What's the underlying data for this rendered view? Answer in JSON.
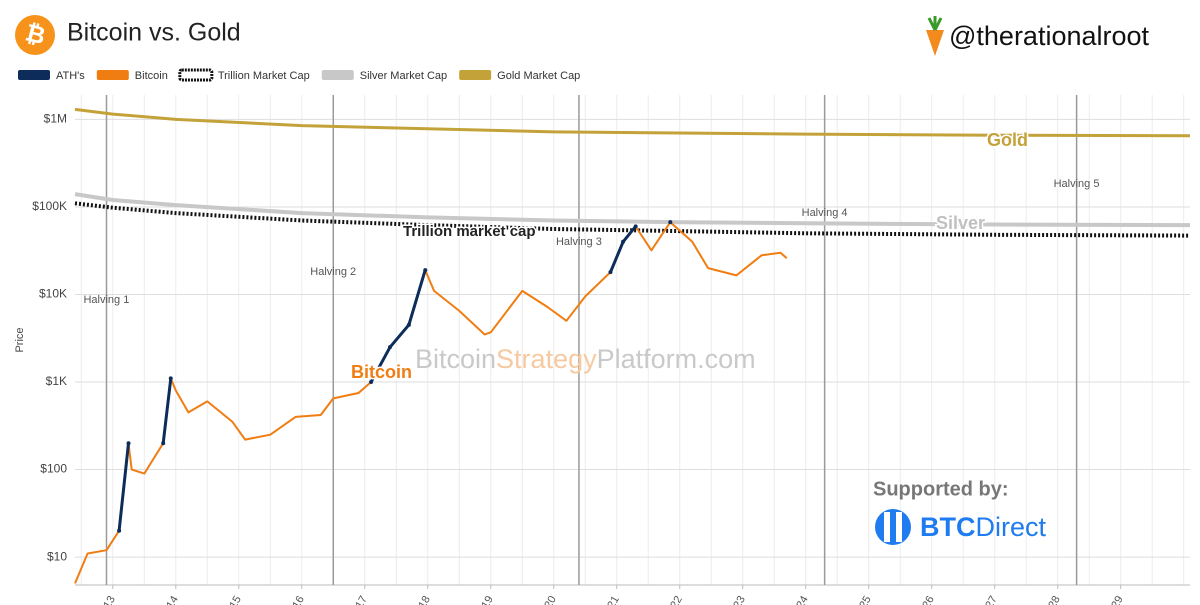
{
  "header": {
    "title": "Bitcoin vs. Gold",
    "handle": "@therationalroot"
  },
  "chart_data": {
    "type": "line",
    "log_y": true,
    "grid": true,
    "y_label": "Price",
    "xlim": [
      2012.4,
      2030.1
    ],
    "ylim": [
      4.8,
      1900000
    ],
    "yticks": [
      {
        "value": 10,
        "label": "$10"
      },
      {
        "value": 100,
        "label": "$100"
      },
      {
        "value": 1000,
        "label": "$1K"
      },
      {
        "value": 10000,
        "label": "$10K"
      },
      {
        "value": 100000,
        "label": "$100K"
      },
      {
        "value": 1000000,
        "label": "$1M"
      }
    ],
    "xticks": [
      {
        "value": 2013,
        "label": "13"
      },
      {
        "value": 2014,
        "label": "14"
      },
      {
        "value": 2015,
        "label": "15"
      },
      {
        "value": 2016,
        "label": "16"
      },
      {
        "value": 2017,
        "label": "17"
      },
      {
        "value": 2018,
        "label": "18"
      },
      {
        "value": 2019,
        "label": "19"
      },
      {
        "value": 2020,
        "label": "20"
      },
      {
        "value": 2021,
        "label": "21"
      },
      {
        "value": 2022,
        "label": "22"
      },
      {
        "value": 2023,
        "label": "23"
      },
      {
        "value": 2024,
        "label": "24"
      },
      {
        "value": 2025,
        "label": "25"
      },
      {
        "value": 2026,
        "label": "26"
      },
      {
        "value": 2027,
        "label": "27"
      },
      {
        "value": 2028,
        "label": "28"
      },
      {
        "value": 2029,
        "label": "29"
      }
    ],
    "series": [
      {
        "name": "ATH's",
        "color": "#0d2c5a",
        "x": [
          2012.4,
          2012.6,
          2012.9,
          2013.1,
          2013.25,
          2013.3,
          2013.5,
          2013.8,
          2013.92,
          2014.0,
          2014.2,
          2014.5,
          2014.9,
          2015.1,
          2015.5,
          2015.9,
          2016.3,
          2016.5,
          2016.9,
          2017.1,
          2017.4,
          2017.7,
          2017.96,
          2018.1,
          2018.5,
          2018.9,
          2019.0,
          2019.5,
          2019.9,
          2020.2,
          2020.5,
          2020.9,
          2021.1,
          2021.3,
          2021.55,
          2021.85,
          2022.2,
          2022.45,
          2022.9,
          2023.3,
          2023.6,
          2023.7
        ],
        "values": [
          null,
          null,
          null,
          20,
          200,
          null,
          null,
          200,
          1100,
          null,
          null,
          null,
          null,
          null,
          null,
          null,
          null,
          null,
          null,
          1000,
          2500,
          4500,
          19000,
          null,
          null,
          null,
          null,
          null,
          null,
          null,
          null,
          18000,
          40000,
          60000,
          null,
          67000,
          null,
          null,
          null,
          null,
          null,
          null
        ]
      },
      {
        "name": "Bitcoin",
        "color": "#f07d12",
        "x": [
          2012.4,
          2012.6,
          2012.9,
          2013.1,
          2013.25,
          2013.3,
          2013.5,
          2013.8,
          2013.92,
          2014.0,
          2014.2,
          2014.5,
          2014.9,
          2015.1,
          2015.5,
          2015.9,
          2016.3,
          2016.5,
          2016.9,
          2017.1,
          2017.4,
          2017.7,
          2017.96,
          2018.1,
          2018.5,
          2018.9,
          2019.0,
          2019.5,
          2019.9,
          2020.2,
          2020.5,
          2020.9,
          2021.1,
          2021.3,
          2021.55,
          2021.85,
          2022.2,
          2022.45,
          2022.9,
          2023.3,
          2023.6,
          2023.7
        ],
        "values": [
          5,
          11,
          12,
          20,
          200,
          100,
          90,
          200,
          1100,
          800,
          450,
          600,
          350,
          220,
          250,
          400,
          420,
          650,
          750,
          1000,
          2500,
          4500,
          19000,
          11000,
          6500,
          3500,
          3700,
          11000,
          7200,
          5000,
          9500,
          18000,
          40000,
          60000,
          32000,
          67000,
          40000,
          20000,
          16500,
          28000,
          30000,
          26000
        ]
      },
      {
        "name": "Trillion Market Cap",
        "color": "#111111",
        "x": [
          2012.4,
          2013,
          2014,
          2016,
          2018,
          2020,
          2022,
          2024,
          2027,
          2030.1
        ],
        "values": [
          110000,
          98000,
          85000,
          70000,
          62000,
          56000,
          53000,
          50000,
          48000,
          47000
        ]
      },
      {
        "name": "Silver Market Cap",
        "color": "#c8c8c8",
        "x": [
          2012.4,
          2013,
          2014,
          2016,
          2018,
          2020,
          2022,
          2024,
          2027,
          2030.1
        ],
        "values": [
          140000,
          120000,
          105000,
          85000,
          76000,
          70000,
          67000,
          65000,
          63000,
          62000
        ]
      },
      {
        "name": "Gold Market Cap",
        "color": "#c4a23a",
        "x": [
          2012.4,
          2013,
          2014,
          2016,
          2018,
          2020,
          2022,
          2024,
          2027,
          2030.1
        ],
        "values": [
          1300000,
          1150000,
          1000000,
          850000,
          780000,
          720000,
          700000,
          680000,
          660000,
          650000
        ]
      }
    ],
    "halvings": [
      {
        "label": "Halving 1",
        "x": 2012.9
      },
      {
        "label": "Halving 2",
        "x": 2016.5
      },
      {
        "label": "Halving 3",
        "x": 2020.4
      },
      {
        "label": "Halving 4",
        "x": 2024.3
      },
      {
        "label": "Halving 5",
        "x": 2028.3
      }
    ],
    "annotations": {
      "gold": "Gold",
      "silver": "Silver",
      "trillion": "Trillion market cap",
      "bitcoin": "Bitcoin"
    },
    "watermark": [
      "Bitcoin",
      "Strategy",
      "Platform.com"
    ],
    "sponsor": {
      "caption": "Supported by:",
      "brand": [
        "BTC",
        "Direct"
      ]
    }
  }
}
